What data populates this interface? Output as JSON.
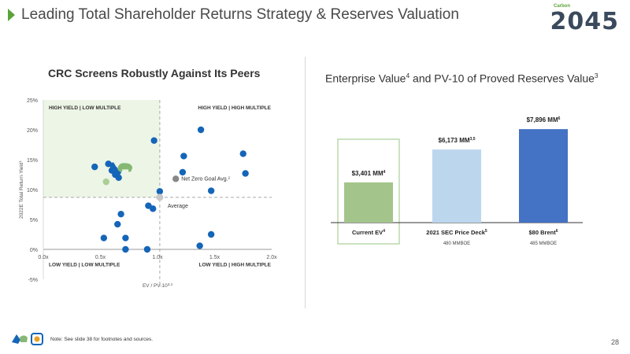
{
  "header": {
    "title": "Leading Total Shareholder Returns Strategy & Reserves Valuation",
    "logo_small": "Carbon",
    "logo_text": "2045"
  },
  "colors": {
    "accent_green": "#5aa33a",
    "quadrant_fill": "#edf5e6",
    "peer_dot": "#1565b8",
    "crc_icon": "#86b874",
    "bar_green": "#a3c58c",
    "bar_light_blue": "#bcd6ee",
    "bar_blue": "#4472c4"
  },
  "chart_data": [
    {
      "type": "scatter",
      "title": "CRC Screens Robustly Against Its Peers",
      "xlabel": "EV / PV-10",
      "xlabel_sup": "3,4",
      "ylabel": "2022E Total Return Yield",
      "ylabel_sup": "1",
      "xlim": [
        0,
        2.0
      ],
      "ylim": [
        -5,
        25
      ],
      "x_ticks": [
        "0.0x",
        "0.5x",
        "1.0x",
        "1.5x",
        "2.0x"
      ],
      "y_ticks": [
        "-5%",
        "0%",
        "5%",
        "10%",
        "15%",
        "20%",
        "25%"
      ],
      "y_tick_values": [
        -5,
        0,
        5,
        10,
        15,
        20,
        25
      ],
      "x_tick_values": [
        0,
        0.5,
        1.0,
        1.5,
        2.0
      ],
      "quadrant_labels": {
        "top_left": "HIGH YIELD | LOW MULTIPLE",
        "top_right": "HIGH YIELD | HIGH MULTIPLE",
        "bottom_left": "LOW YIELD | LOW MULTIPLE",
        "bottom_right": "LOW YIELD | HIGH MULTIPLE"
      },
      "peers": [
        {
          "x": 0.45,
          "y": 13.8
        },
        {
          "x": 0.57,
          "y": 14.3
        },
        {
          "x": 0.6,
          "y": 13.2
        },
        {
          "x": 0.63,
          "y": 12.5
        },
        {
          "x": 0.66,
          "y": 12.0
        },
        {
          "x": 0.97,
          "y": 18.2
        },
        {
          "x": 1.02,
          "y": 9.7
        },
        {
          "x": 1.23,
          "y": 15.6
        },
        {
          "x": 1.22,
          "y": 12.9
        },
        {
          "x": 1.38,
          "y": 20.0
        },
        {
          "x": 1.47,
          "y": 9.8
        },
        {
          "x": 1.75,
          "y": 16.0
        },
        {
          "x": 1.77,
          "y": 12.7
        },
        {
          "x": 0.92,
          "y": 7.3
        },
        {
          "x": 0.96,
          "y": 6.8
        },
        {
          "x": 0.68,
          "y": 5.9
        },
        {
          "x": 0.65,
          "y": 4.2
        },
        {
          "x": 0.53,
          "y": 1.9
        },
        {
          "x": 0.72,
          "y": 1.9
        },
        {
          "x": 0.72,
          "y": 0.0
        },
        {
          "x": 0.91,
          "y": 0.0
        },
        {
          "x": 1.47,
          "y": 2.5
        },
        {
          "x": 1.37,
          "y": 0.6
        }
      ],
      "crc": {
        "x": 0.67,
        "y": 13.5
      },
      "crc_marker": {
        "x": 0.55,
        "y": 11.3
      },
      "average": {
        "x": 1.02,
        "y": 8.7,
        "label": "Average"
      },
      "net_zero_goal_avg": {
        "x": 1.16,
        "y": 11.8,
        "label": "Net Zero Goal Avg.",
        "label_sup": "2"
      },
      "avg_line_x": 1.02,
      "avg_line_y": 8.7
    },
    {
      "type": "bar",
      "title": "Enterprise Value",
      "title_sup_1": "4",
      "title_mid": " and PV-10 of Proved Reserves Value",
      "title_sup_2": "3",
      "categories": [
        "Current EV",
        "2021 SEC Price Deck",
        "$80 Brent"
      ],
      "category_sups": [
        "4",
        "5",
        "6"
      ],
      "values": [
        3401,
        6173,
        7896
      ],
      "value_labels": [
        "$3,401 MM",
        "$6,173 MM",
        "$7,896 MM"
      ],
      "value_sups": [
        "4",
        "3,5",
        "6"
      ],
      "sublabels": [
        "",
        "480 MMBOE",
        "485 MMBOE"
      ],
      "ylim": [
        0,
        9500
      ]
    }
  ],
  "footer": {
    "note": "Note: See slide 38 for footnotes and sources.",
    "page_number": "28"
  }
}
